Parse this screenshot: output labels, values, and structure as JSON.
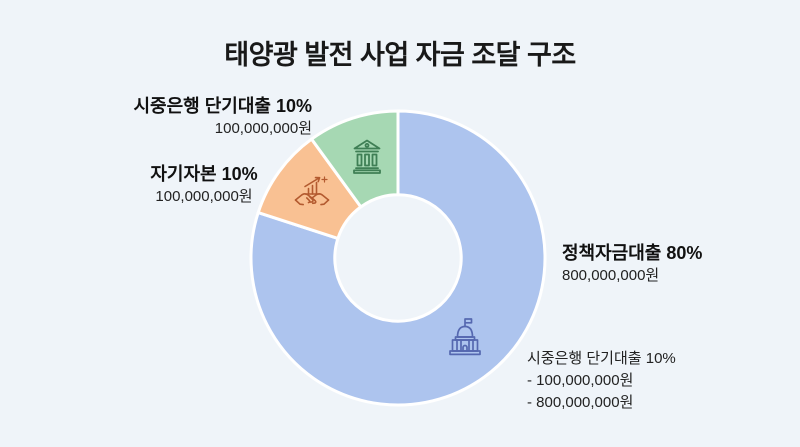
{
  "title": "태양광 발전 사업 자금 조달 구조",
  "chart_data": {
    "type": "pie",
    "subtype": "donut",
    "title": "태양광 발전 사업 자금 조달 구조",
    "unit": "원",
    "start_angle_deg": 0,
    "direction": "clockwise",
    "inner_radius_ratio": 0.43,
    "legend_position": "none",
    "series": [
      {
        "label": "정책자금대출",
        "pct": 80,
        "amount": "800,000,000원",
        "color": "#adc4ee",
        "icon": "government-building-icon"
      },
      {
        "label": "자기자본",
        "pct": 10,
        "amount": "100,000,000원",
        "color": "#f9c193",
        "icon": "handshake-growth-icon"
      },
      {
        "label": "시중은행 단기대출",
        "pct": 10,
        "amount": "100,000,000원",
        "color": "#a6d8b3",
        "icon": "bank-building-icon"
      }
    ]
  },
  "labels": {
    "bank_loan": {
      "title": "시중은행 단기대출 10%",
      "amount": "100,000,000원"
    },
    "equity": {
      "title": "자기자본 10%",
      "amount": "100,000,000원"
    },
    "policy_loan": {
      "title": "정책자금대출 80%",
      "amount": "800,000,000원"
    }
  },
  "footnote": {
    "line1": "시중은행 단기대출 10%",
    "line2": "- 100,000,000원",
    "line3": "- 800,000,000원"
  },
  "colors": {
    "background": "#eff4f9",
    "policy_blue": "#adc4ee",
    "equity_orange": "#f9c193",
    "bank_green": "#a6d8b3",
    "icon_green": "#3f7f55",
    "icon_orange": "#b35a2f",
    "icon_blue": "#5568b0",
    "text_dark": "#111111"
  }
}
